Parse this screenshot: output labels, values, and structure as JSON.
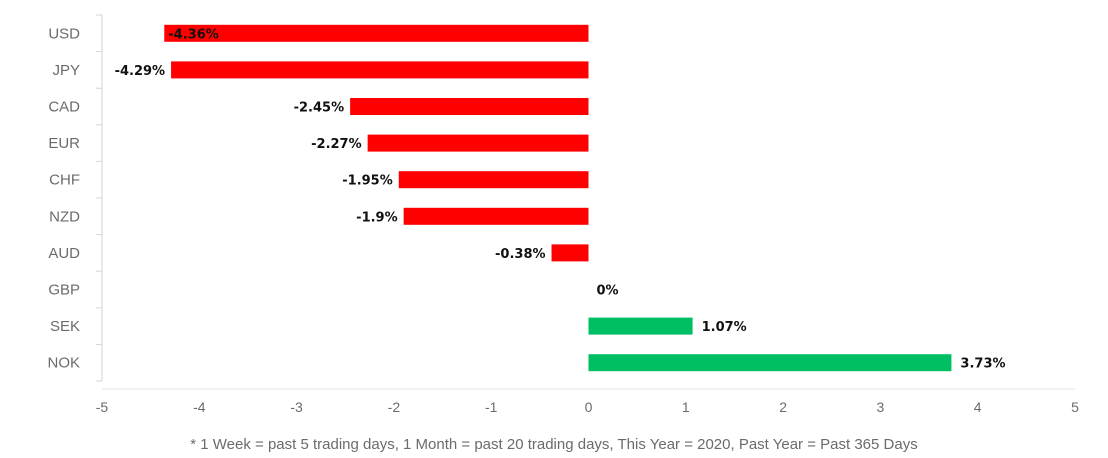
{
  "chart_data": {
    "type": "bar",
    "orientation": "horizontal",
    "categories": [
      "USD",
      "JPY",
      "CAD",
      "EUR",
      "CHF",
      "NZD",
      "AUD",
      "GBP",
      "SEK",
      "NOK"
    ],
    "values": [
      -4.36,
      -4.29,
      -2.45,
      -2.27,
      -1.95,
      -1.9,
      -0.38,
      0,
      1.07,
      3.73
    ],
    "value_labels": [
      "-4.36%",
      "-4.29%",
      "-2.45%",
      "-2.27%",
      "-1.95%",
      "-1.9%",
      "-0.38%",
      "0%",
      "1.07%",
      "3.73%"
    ],
    "xlim": [
      -5,
      5
    ],
    "xticks": [
      -5,
      -4,
      -3,
      -2,
      -1,
      0,
      1,
      2,
      3,
      4,
      5
    ],
    "xtick_labels": [
      "-5",
      "-4",
      "-3",
      "-2",
      "-1",
      "0",
      "1",
      "2",
      "3",
      "4",
      "5"
    ],
    "colors": {
      "negative": "#ff0000",
      "positive": "#00bf63"
    },
    "grid": false,
    "title": "",
    "xlabel": "",
    "ylabel": ""
  },
  "footnote": "* 1 Week = past 5 trading days, 1 Month = past 20 trading days, This Year = 2020, Past Year = Past 365 Days"
}
